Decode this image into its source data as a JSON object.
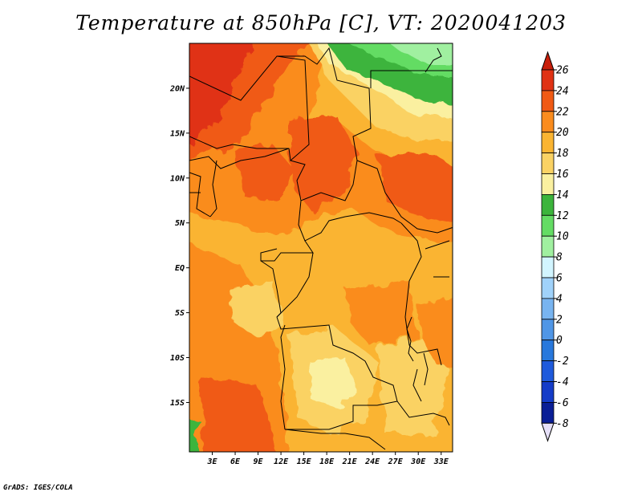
{
  "title": "Temperature at 850hPa [C], VT: 2020041203",
  "credit": "GrADS: IGES/COLA",
  "map": {
    "lon_range": [
      0,
      34.5
    ],
    "lat_range": [
      -20.5,
      25
    ],
    "lat_ticks": [
      {
        "value": 20,
        "label": "20N"
      },
      {
        "value": 15,
        "label": "15N"
      },
      {
        "value": 10,
        "label": "10N"
      },
      {
        "value": 5,
        "label": "5N"
      },
      {
        "value": 0,
        "label": "EQ"
      },
      {
        "value": -5,
        "label": "5S"
      },
      {
        "value": -10,
        "label": "10S"
      },
      {
        "value": -15,
        "label": "15S"
      }
    ],
    "lon_ticks": [
      {
        "value": 3,
        "label": "3E"
      },
      {
        "value": 6,
        "label": "6E"
      },
      {
        "value": 9,
        "label": "9E"
      },
      {
        "value": 12,
        "label": "12E"
      },
      {
        "value": 15,
        "label": "15E"
      },
      {
        "value": 18,
        "label": "18E"
      },
      {
        "value": 21,
        "label": "21E"
      },
      {
        "value": 24,
        "label": "24E"
      },
      {
        "value": 27,
        "label": "27E"
      },
      {
        "value": 30,
        "label": "30E"
      },
      {
        "value": 33,
        "label": "33E"
      }
    ]
  },
  "colorbar": {
    "labels": [
      "26",
      "24",
      "22",
      "20",
      "18",
      "16",
      "14",
      "12",
      "10",
      "8",
      "6",
      "4",
      "2",
      "0",
      "-2",
      "-4",
      "-6",
      "-8"
    ],
    "colors": [
      "#e03214",
      "#f05a14",
      "#fa8c1e",
      "#fab432",
      "#fad264",
      "#faf0a0",
      "#3cb43c",
      "#64dc64",
      "#a0f0a0",
      "#d2f5ff",
      "#a0d2fa",
      "#78b4f0",
      "#5096e6",
      "#2878dc",
      "#1e5adc",
      "#143cc8",
      "#0a1e96",
      "#0a0a5a"
    ],
    "top_arrow_color": "#c81e0a",
    "bottom_arrow_color": "#e6e0f8"
  }
}
